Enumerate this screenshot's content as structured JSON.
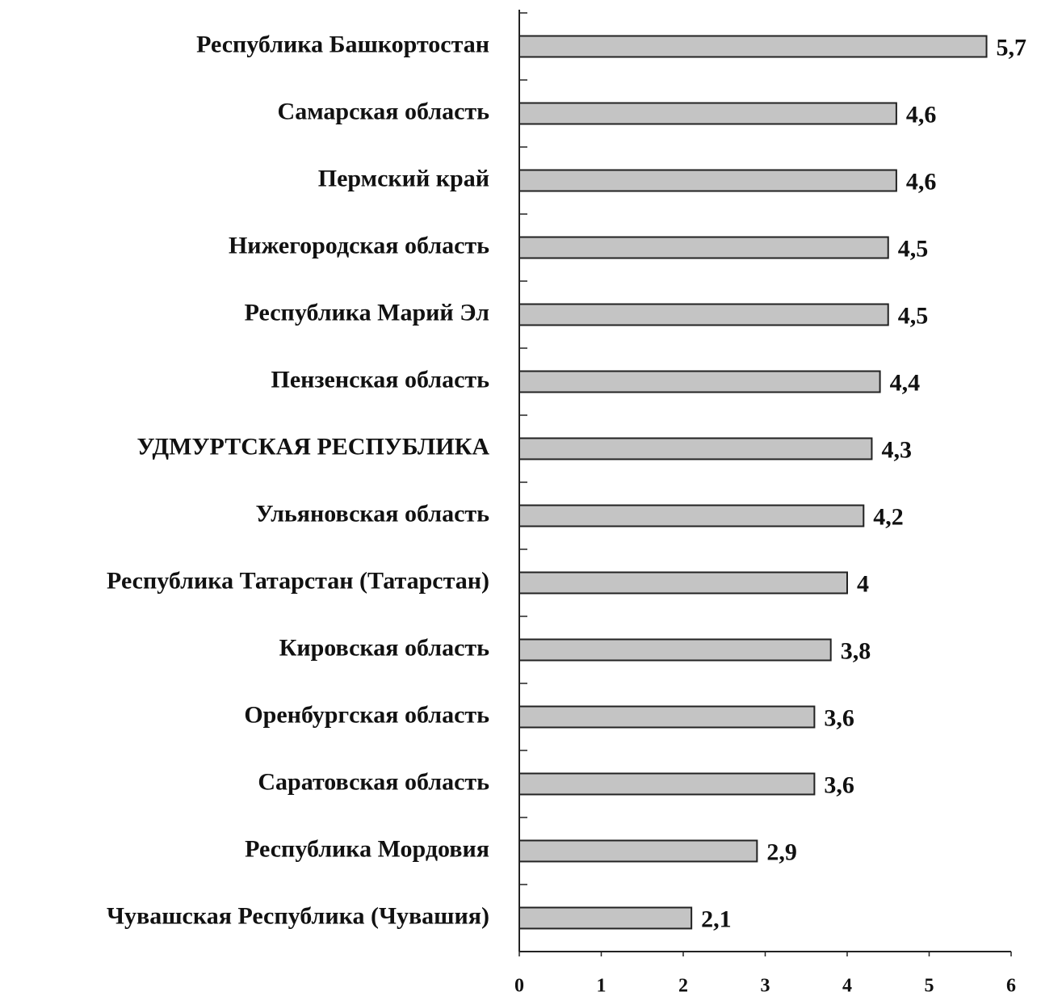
{
  "chart_data": {
    "type": "bar",
    "orientation": "horizontal",
    "categories": [
      "Республика Башкортостан",
      "Самарская область",
      "Пермский край",
      "Нижегородская область",
      "Республика Марий Эл",
      "Пензенская область",
      "УДМУРТСКАЯ РЕСПУБЛИКА",
      "Ульяновская область",
      "Республика Татарстан (Татарстан)",
      "Кировская область",
      "Оренбургская область",
      "Саратовская область",
      "Республика Мордовия",
      "Чувашская Республика (Чувашия)"
    ],
    "values": [
      5.7,
      4.6,
      4.6,
      4.5,
      4.5,
      4.4,
      4.3,
      4.2,
      4,
      3.8,
      3.6,
      3.6,
      2.9,
      2.1
    ],
    "value_labels": [
      "5,7",
      "4,6",
      "4,6",
      "4,5",
      "4,5",
      "4,4",
      "4,3",
      "4,2",
      "4",
      "3,8",
      "3,6",
      "3,6",
      "2,9",
      "2,1"
    ],
    "color": "#c4c4c4",
    "xlim": [
      0,
      6
    ],
    "xticks": [
      0,
      1,
      2,
      3,
      4,
      5,
      6
    ],
    "grid": false
  }
}
